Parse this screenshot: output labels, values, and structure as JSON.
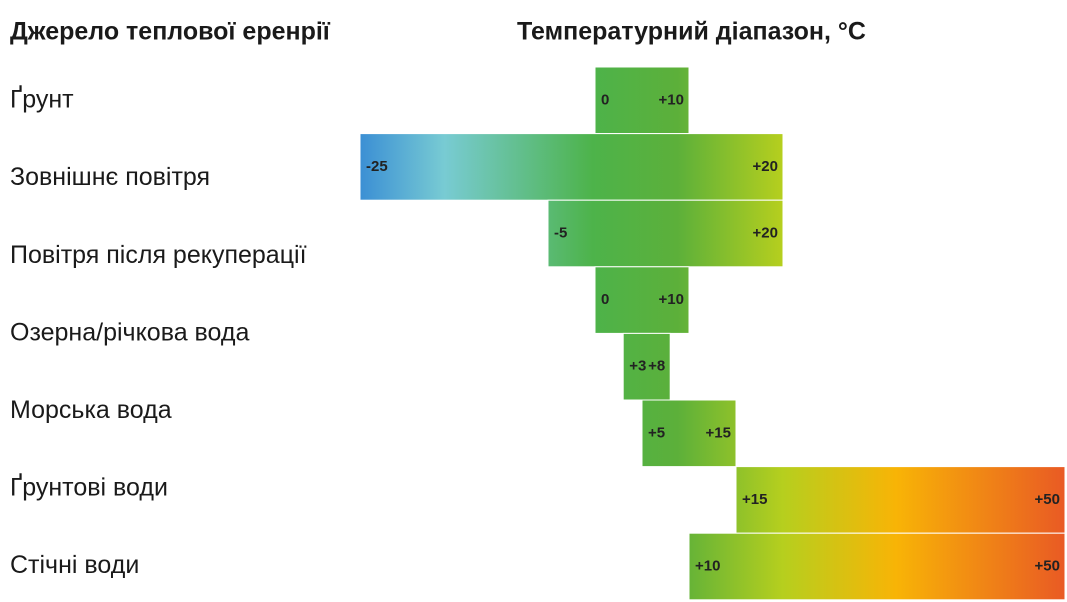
{
  "chart_data": {
    "type": "range-bar",
    "headers": [
      "Джерело теплової еренрії",
      "Температурний діапазон, °C"
    ],
    "categories": [
      "Ґрунт",
      "Зовнішнє повітря",
      "Повітря після рекуперації",
      "Озерна/річкова вода",
      null,
      "Морська вода",
      "Ґрунтові води",
      "Стічні води"
    ],
    "values": [
      [
        0,
        10
      ],
      [
        -25,
        20
      ],
      [
        -5,
        20
      ],
      [
        0,
        10
      ],
      [
        3,
        8
      ],
      [
        5,
        15
      ],
      [
        15,
        50
      ],
      [
        10,
        50
      ]
    ],
    "value_labels": [
      [
        "0",
        "+10"
      ],
      [
        "-25",
        "+20"
      ],
      [
        "-5",
        "+20"
      ],
      [
        "0",
        "+10"
      ],
      [
        "+3",
        "+8"
      ],
      [
        "+5",
        "+15"
      ],
      [
        "+15",
        "+50"
      ],
      [
        "+10",
        "+50"
      ]
    ],
    "xlim": [
      -25,
      50
    ]
  }
}
